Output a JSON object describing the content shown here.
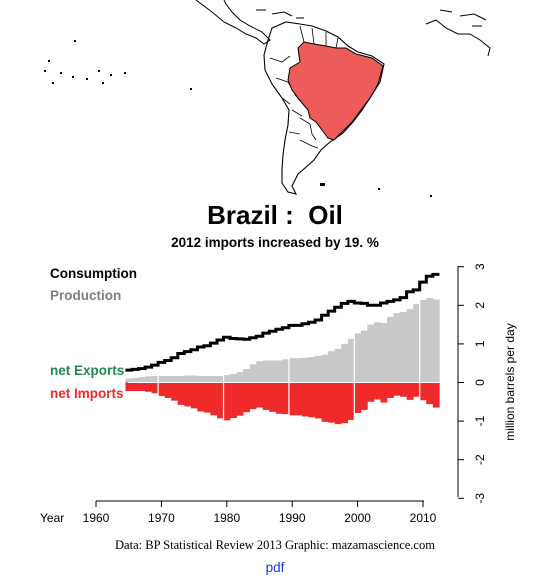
{
  "title": "Brazil :  Oil",
  "subtitle": "2012 imports increased by 19. %",
  "credit": "Data: BP Statistical Review 2013    Graphic: mazamascience.com",
  "pdf_link": "pdf",
  "colors": {
    "highlight_country": "#ee5b5b",
    "consumption": "#000000",
    "production": "#c8c8c8",
    "net_exports": "#1f8a4c",
    "net_imports": "#ee2a2a",
    "production_label": "#7f7f7f"
  },
  "chart_data": {
    "type": "area",
    "xlabel": "Year",
    "ylabel": "million barrels per day",
    "xlim": [
      1960,
      2012
    ],
    "ylim": [
      -3,
      3
    ],
    "x_ticks": [
      1960,
      1970,
      1980,
      1990,
      2000,
      2010
    ],
    "y_ticks": [
      3,
      2,
      1,
      0,
      -1,
      -2,
      -3
    ],
    "grid": false,
    "legend_position": "left",
    "legend": [
      "Consumption",
      "Production",
      "net Exports",
      "net Imports"
    ],
    "x": [
      1965,
      1966,
      1967,
      1968,
      1969,
      1970,
      1971,
      1972,
      1973,
      1974,
      1975,
      1976,
      1977,
      1978,
      1979,
      1980,
      1981,
      1982,
      1983,
      1984,
      1985,
      1986,
      1987,
      1988,
      1989,
      1990,
      1991,
      1992,
      1993,
      1994,
      1995,
      1996,
      1997,
      1998,
      1999,
      2000,
      2001,
      2002,
      2003,
      2004,
      2005,
      2006,
      2007,
      2008,
      2009,
      2010,
      2011,
      2012
    ],
    "series": [
      {
        "name": "Consumption",
        "values": [
          0.32,
          0.34,
          0.36,
          0.4,
          0.45,
          0.52,
          0.57,
          0.64,
          0.75,
          0.8,
          0.85,
          0.92,
          0.95,
          1.02,
          1.1,
          1.17,
          1.14,
          1.13,
          1.12,
          1.16,
          1.2,
          1.28,
          1.33,
          1.38,
          1.42,
          1.48,
          1.48,
          1.52,
          1.56,
          1.62,
          1.74,
          1.85,
          1.95,
          2.05,
          2.1,
          2.06,
          2.05,
          2.0,
          2.0,
          2.06,
          2.1,
          2.14,
          2.2,
          2.35,
          2.4,
          2.6,
          2.75,
          2.8
        ]
      },
      {
        "name": "Production",
        "values": [
          0.1,
          0.12,
          0.14,
          0.16,
          0.17,
          0.17,
          0.17,
          0.17,
          0.17,
          0.18,
          0.18,
          0.17,
          0.17,
          0.17,
          0.17,
          0.19,
          0.22,
          0.27,
          0.35,
          0.47,
          0.55,
          0.57,
          0.57,
          0.57,
          0.6,
          0.63,
          0.63,
          0.64,
          0.66,
          0.69,
          0.72,
          0.81,
          0.87,
          1.0,
          1.13,
          1.27,
          1.34,
          1.5,
          1.56,
          1.54,
          1.7,
          1.8,
          1.83,
          1.9,
          2.03,
          2.14,
          2.19,
          2.15
        ]
      }
    ]
  }
}
